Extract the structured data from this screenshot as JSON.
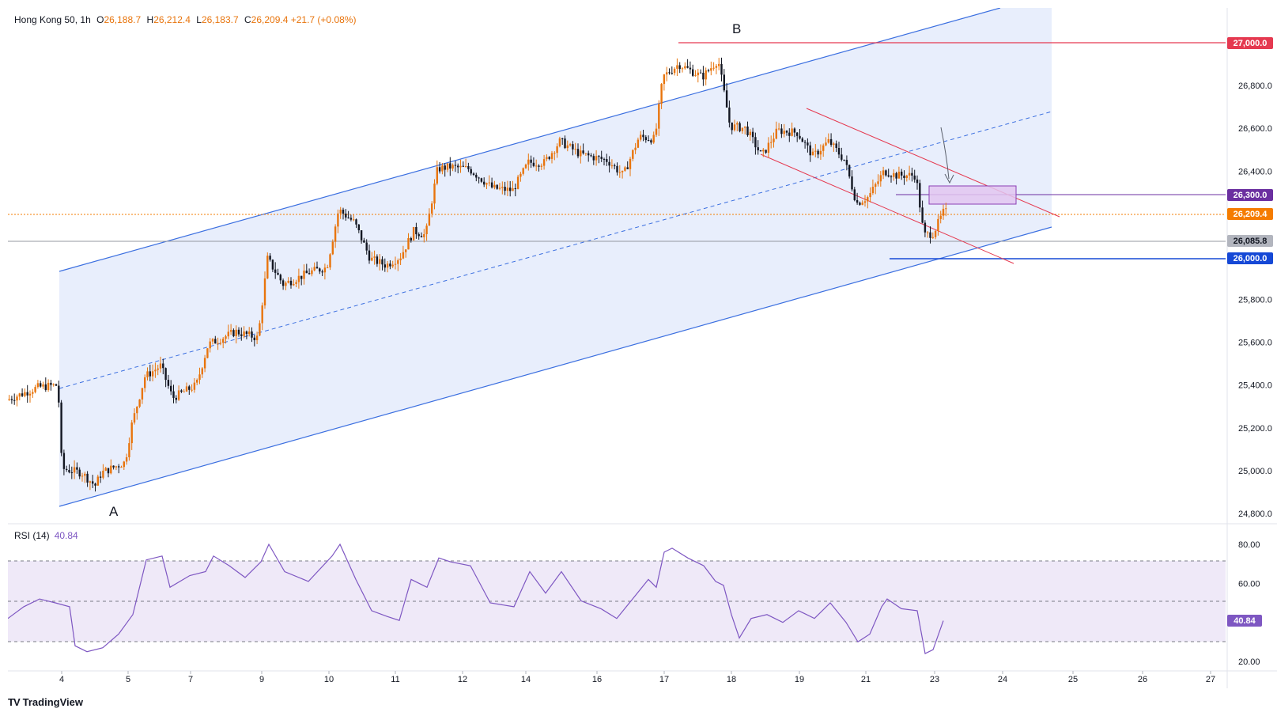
{
  "legend": {
    "symbol": "Hong Kong 50",
    "interval": "1h",
    "o_label": "O",
    "o": "26,188.7",
    "h_label": "H",
    "h": "26,212.4",
    "l_label": "L",
    "l": "26,183.7",
    "c_label": "C",
    "c": "26,209.4",
    "change": "+21.7 (+0.08%)"
  },
  "rsi_legend": {
    "name": "RSI (14)",
    "value": "40.84"
  },
  "brand": {
    "logo": "TV",
    "name": "TradingView"
  },
  "colors": {
    "up": "#e8740c",
    "down": "#131722",
    "channel": "#3b6fe0",
    "channel_fill": "#e8eefc",
    "resistance": "#e53950",
    "support": "#1548d6",
    "rsi": "#7e57c2",
    "rsi_band": "#efe9f8",
    "zone": "#e2c6f0",
    "zone_border": "#8b3fb5",
    "last_price": "#f57c00",
    "gray_level": "#9598a1"
  },
  "chart_data": [
    {
      "type": "candlestick",
      "title": "Hong Kong 50 · 1h",
      "x_tick_labels": [
        "4",
        "5",
        "7",
        "9",
        "10",
        "11",
        "12",
        "14",
        "16",
        "17",
        "18",
        "19",
        "21",
        "23",
        "24",
        "25",
        "26",
        "27"
      ],
      "y_tick_labels": [
        "24,800.0",
        "25,000.0",
        "25,200.0",
        "25,400.0",
        "25,600.0",
        "25,800.0",
        "26,000.0",
        "26,200.0",
        "26,400.0",
        "26,600.0",
        "26,800.0",
        "27,000.0"
      ],
      "ylim": [
        24740,
        27180
      ],
      "price_path": [
        [
          0,
          25330
        ],
        [
          40,
          25390
        ],
        [
          65,
          25400
        ],
        [
          70,
          25010
        ],
        [
          95,
          24990
        ],
        [
          112,
          24930
        ],
        [
          120,
          24990
        ],
        [
          150,
          25040
        ],
        [
          158,
          25210
        ],
        [
          175,
          25440
        ],
        [
          195,
          25490
        ],
        [
          210,
          25340
        ],
        [
          240,
          25400
        ],
        [
          255,
          25590
        ],
        [
          290,
          25650
        ],
        [
          318,
          25620
        ],
        [
          330,
          25990
        ],
        [
          350,
          25870
        ],
        [
          385,
          25930
        ],
        [
          405,
          25950
        ],
        [
          420,
          26220
        ],
        [
          440,
          26160
        ],
        [
          460,
          25990
        ],
        [
          480,
          25960
        ],
        [
          498,
          26000
        ],
        [
          515,
          26120
        ],
        [
          530,
          26100
        ],
        [
          545,
          26410
        ],
        [
          560,
          26420
        ],
        [
          585,
          26410
        ],
        [
          615,
          26320
        ],
        [
          640,
          26310
        ],
        [
          660,
          26440
        ],
        [
          680,
          26440
        ],
        [
          700,
          26540
        ],
        [
          725,
          26480
        ],
        [
          760,
          26450
        ],
        [
          780,
          26380
        ],
        [
          800,
          26560
        ],
        [
          820,
          26550
        ],
        [
          830,
          26840
        ],
        [
          850,
          26900
        ],
        [
          880,
          26840
        ],
        [
          900,
          26920
        ],
        [
          915,
          26610
        ],
        [
          935,
          26600
        ],
        [
          955,
          26470
        ],
        [
          975,
          26590
        ],
        [
          1000,
          26580
        ],
        [
          1020,
          26470
        ],
        [
          1040,
          26540
        ],
        [
          1060,
          26450
        ],
        [
          1075,
          26250
        ],
        [
          1090,
          26280
        ],
        [
          1110,
          26400
        ],
        [
          1125,
          26380
        ],
        [
          1150,
          26380
        ],
        [
          1160,
          26100
        ],
        [
          1172,
          26110
        ],
        [
          1185,
          26209
        ]
      ]
    },
    {
      "type": "line",
      "name": "RSI (14)",
      "y_tick_labels": [
        "20.00",
        "40.00",
        "60.00",
        "80.00"
      ],
      "ylim": [
        15,
        85
      ],
      "bands": {
        "upper": 70,
        "middle": 50,
        "lower": 30
      },
      "rsi_path": [
        [
          0,
          42
        ],
        [
          20,
          48
        ],
        [
          40,
          52
        ],
        [
          60,
          50
        ],
        [
          78,
          48
        ],
        [
          85,
          28
        ],
        [
          100,
          25
        ],
        [
          120,
          27
        ],
        [
          140,
          34
        ],
        [
          158,
          44
        ],
        [
          175,
          72
        ],
        [
          195,
          74
        ],
        [
          205,
          58
        ],
        [
          230,
          64
        ],
        [
          250,
          66
        ],
        [
          260,
          74
        ],
        [
          280,
          69
        ],
        [
          300,
          63
        ],
        [
          320,
          71
        ],
        [
          330,
          80
        ],
        [
          350,
          66
        ],
        [
          380,
          61
        ],
        [
          410,
          74
        ],
        [
          420,
          80
        ],
        [
          440,
          62
        ],
        [
          460,
          46
        ],
        [
          480,
          43
        ],
        [
          495,
          41
        ],
        [
          510,
          62
        ],
        [
          530,
          58
        ],
        [
          545,
          73
        ],
        [
          560,
          71
        ],
        [
          585,
          69
        ],
        [
          610,
          50
        ],
        [
          640,
          48
        ],
        [
          660,
          66
        ],
        [
          680,
          55
        ],
        [
          700,
          66
        ],
        [
          725,
          51
        ],
        [
          750,
          47
        ],
        [
          770,
          42
        ],
        [
          790,
          52
        ],
        [
          810,
          62
        ],
        [
          820,
          58
        ],
        [
          830,
          76
        ],
        [
          840,
          78
        ],
        [
          860,
          73
        ],
        [
          880,
          69
        ],
        [
          895,
          61
        ],
        [
          905,
          59
        ],
        [
          915,
          44
        ],
        [
          925,
          32
        ],
        [
          940,
          42
        ],
        [
          960,
          44
        ],
        [
          980,
          40
        ],
        [
          1000,
          46
        ],
        [
          1020,
          42
        ],
        [
          1040,
          50
        ],
        [
          1060,
          40
        ],
        [
          1075,
          30
        ],
        [
          1090,
          34
        ],
        [
          1105,
          48
        ],
        [
          1112,
          52
        ],
        [
          1130,
          47
        ],
        [
          1150,
          46
        ],
        [
          1160,
          24
        ],
        [
          1170,
          26
        ],
        [
          1183,
          40.84
        ]
      ]
    }
  ],
  "annotations": {
    "label_a": "A",
    "label_b": "B",
    "level_27000": "27,000.0",
    "level_26300": "26,300.0",
    "last_price": "26,209.4",
    "level_26085": "26,085.8",
    "level_26000": "26,000.0",
    "rsi_value": "40.84"
  }
}
